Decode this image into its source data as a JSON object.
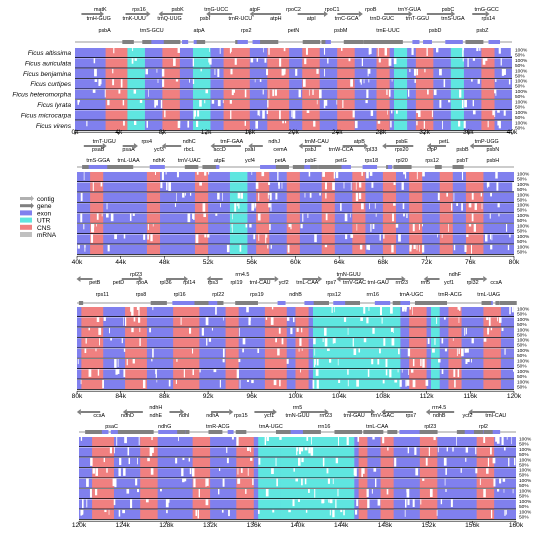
{
  "colors": {
    "exon": "#8080ee",
    "utr": "#5fe6e0",
    "cns": "#f08080",
    "gene": "#808080",
    "contig": "#b0b0b0",
    "mrna": "#c0c0c0"
  },
  "species": [
    "Ficus altissima",
    "Ficus auriculata",
    "Ficus benjamina",
    "Ficus curtipes",
    "Ficus heteromorpha",
    "Ficus lyrata",
    "Ficus microcarpa",
    "Ficus virens"
  ],
  "legend": [
    {
      "label": "contig",
      "color": "#b0b0b0"
    },
    {
      "label": "gene",
      "color": "#808080"
    },
    {
      "label": "exon",
      "color": "#8080ee"
    },
    {
      "label": "UTR",
      "color": "#5fe6e0"
    },
    {
      "label": "CNS",
      "color": "#f08080"
    },
    {
      "label": "mRNA",
      "color": "#c0c0c0"
    }
  ],
  "y_ticks": [
    "100%",
    "50%"
  ],
  "panels": [
    {
      "x_ticks": [
        "0k",
        "4k",
        "8k",
        "12k",
        "16k",
        "20k",
        "24k",
        "28k",
        "32k",
        "36k",
        "40k"
      ],
      "genes_top": [
        "matK",
        "rps16",
        "psbK",
        "trnG-UCC",
        "atpF",
        "rpoC2",
        "rpoC1",
        "rpoB",
        "trnY-GUA",
        "psbC",
        "trnG-GCC"
      ],
      "genes_mid": [
        "trnH-GUG",
        "trnK-UUU",
        "trnQ-UUG",
        "psbI",
        "trnR-UCU",
        "atpH",
        "atpI",
        "trnC-GCA",
        "trnD-GUC",
        "trnT-GGU",
        "trnS-UGA",
        "rps14"
      ],
      "genes_low": [
        "psbA",
        "trnS-GCU",
        "atpA",
        "rps2",
        "petN",
        "psbM",
        "trnE-UUC",
        "psbD",
        "psbZ"
      ]
    },
    {
      "x_ticks": [
        "40k",
        "44k",
        "48k",
        "52k",
        "56k",
        "60k",
        "64k",
        "68k",
        "72k",
        "76k",
        "80k"
      ],
      "genes_top": [
        "trnT-UGU",
        "rps4",
        "ndhC",
        "trnF-GAA",
        "ndhJ",
        "trnM-CAU",
        "atpB",
        "psbE",
        "petL",
        "trnP-UGG"
      ],
      "genes_mid": [
        "psaB",
        "psaA",
        "ycf3",
        "rbcL",
        "accD",
        "psaI",
        "cemA",
        "psbJ",
        "trnW-CCA",
        "rpl33",
        "rps20",
        "clpP",
        "psbB",
        "psbN"
      ],
      "genes_low": [
        "trnS-GGA",
        "trnL-UAA",
        "ndhK",
        "trnV-UAC",
        "atpE",
        "ycf4",
        "petA",
        "psbF",
        "petG",
        "rps18",
        "rpl20",
        "rps12",
        "psbT",
        "psbH"
      ]
    },
    {
      "x_ticks": [
        "80k",
        "84k",
        "88k",
        "92k",
        "96k",
        "100k",
        "104k",
        "108k",
        "112k",
        "116k",
        "120k"
      ],
      "genes_top": [
        "rpl23",
        "rrn4.5",
        "trnN-GUU",
        "ndhF"
      ],
      "genes_mid": [
        "petB",
        "petD",
        "rpoA",
        "rpl36",
        "rpl14",
        "rps3",
        "rpl19",
        "trnI-CAU",
        "ycf2",
        "trnL-CAA",
        "rps7",
        "trnV-GAC",
        "trnI-GAU",
        "rrn23",
        "rrn5",
        "ycf1",
        "rpl32",
        "ccsA"
      ],
      "genes_low": [
        "rps11",
        "rps8",
        "rpl16",
        "rpl22",
        "rps19",
        "ndhB",
        "rps12",
        "rrn16",
        "trnA-UGC",
        "trnR-ACG",
        "trnL-UAG"
      ]
    },
    {
      "x_ticks": [
        "120k",
        "124k",
        "128k",
        "132k",
        "136k",
        "140k",
        "144k",
        "148k",
        "152k",
        "156k",
        "160k"
      ],
      "genes_top": [
        "ndhH",
        "rrn5",
        "rrn4.5"
      ],
      "genes_mid": [
        "ccsA",
        "ndhD",
        "ndhE",
        "ndhI",
        "ndhA",
        "rps15",
        "ycf1",
        "trnN-GUU",
        "rrn23",
        "trnI-GAU",
        "trnV-GAC",
        "rps7",
        "ndhB",
        "ycf2",
        "trnI-CAU"
      ],
      "genes_low": [
        "psaC",
        "ndhG",
        "trnR-ACG",
        "trnA-UGC",
        "rrn16",
        "trnL-CAA",
        "rpl23",
        "rpl2"
      ]
    }
  ]
}
